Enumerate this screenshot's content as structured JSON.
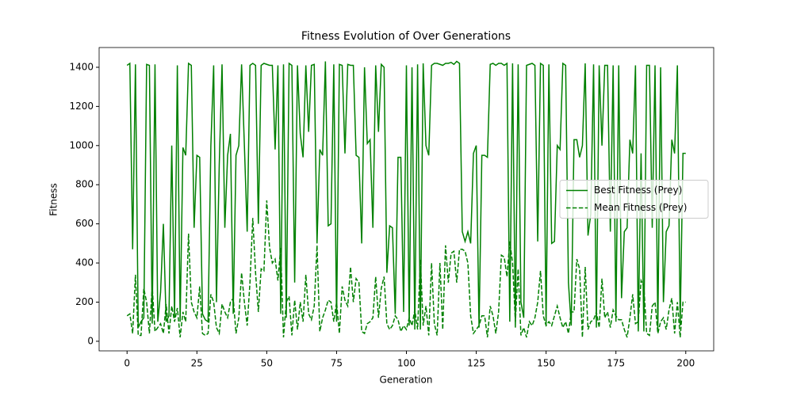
{
  "chart_data": {
    "type": "line",
    "title": "Fitness Evolution of Over Generations",
    "xlabel": "Generation",
    "ylabel": "Fitness",
    "x": [
      0,
      1,
      2,
      3,
      4,
      5,
      6,
      7,
      8,
      9,
      10,
      11,
      12,
      13,
      14,
      15,
      16,
      17,
      18,
      19,
      20,
      21,
      22,
      23,
      24,
      25,
      26,
      27,
      28,
      29,
      30,
      31,
      32,
      33,
      34,
      35,
      36,
      37,
      38,
      39,
      40,
      41,
      42,
      43,
      44,
      45,
      46,
      47,
      48,
      49,
      50,
      51,
      52,
      53,
      54,
      55,
      56,
      57,
      58,
      59,
      60,
      61,
      62,
      63,
      64,
      65,
      66,
      67,
      68,
      69,
      70,
      71,
      72,
      73,
      74,
      75,
      76,
      77,
      78,
      79,
      80,
      81,
      82,
      83,
      84,
      85,
      86,
      87,
      88,
      89,
      90,
      91,
      92,
      93,
      94,
      95,
      96,
      97,
      98,
      99,
      100,
      101,
      102,
      103,
      104,
      105,
      106,
      107,
      108,
      109,
      110,
      111,
      112,
      113,
      114,
      115,
      116,
      117,
      118,
      119,
      120,
      121,
      122,
      123,
      124,
      125,
      126,
      127,
      128,
      129,
      130,
      131,
      132,
      133,
      134,
      135,
      136,
      137,
      138,
      139,
      140,
      141,
      142,
      143,
      144,
      145,
      146,
      147,
      148,
      149,
      150,
      151,
      152,
      153,
      154,
      155,
      156,
      157,
      158,
      159,
      160,
      161,
      162,
      163,
      164,
      165,
      166,
      167,
      168,
      169,
      170,
      171,
      172,
      173,
      174,
      175,
      176,
      177,
      178,
      179,
      180,
      181,
      182,
      183,
      184,
      185,
      186,
      187,
      188,
      189,
      190,
      191,
      192,
      193,
      194,
      195,
      196,
      197,
      198,
      199,
      200
    ],
    "series": [
      {
        "name": "Best Fitness (Prey)",
        "color": "#008000",
        "linestyle": "solid",
        "values": [
          1410,
          1420,
          470,
          1415,
          70,
          100,
          120,
          1415,
          1410,
          90,
          1415,
          100,
          250,
          600,
          100,
          130,
          1000,
          120,
          1410,
          100,
          990,
          950,
          1420,
          1410,
          580,
          950,
          940,
          140,
          110,
          100,
          1000,
          1410,
          200,
          900,
          1415,
          580,
          950,
          1060,
          140,
          950,
          1000,
          1415,
          1000,
          560,
          1410,
          1420,
          1410,
          600,
          1410,
          1420,
          1415,
          1410,
          1410,
          980,
          1410,
          140,
          1415,
          120,
          1420,
          1410,
          300,
          1410,
          1060,
          940,
          1410,
          1070,
          1410,
          1415,
          500,
          980,
          950,
          1430,
          590,
          600,
          1415,
          100,
          1415,
          1410,
          960,
          1415,
          1410,
          1410,
          950,
          940,
          500,
          1400,
          1010,
          1030,
          580,
          1410,
          1070,
          1415,
          1400,
          350,
          590,
          580,
          140,
          940,
          940,
          150,
          1410,
          80,
          1400,
          60,
          1415,
          60,
          1420,
          1000,
          950,
          1410,
          1420,
          1420,
          1415,
          1410,
          1420,
          1420,
          1425,
          1415,
          1430,
          1420,
          560,
          510,
          560,
          500,
          960,
          1000,
          70,
          950,
          950,
          940,
          1415,
          1420,
          1410,
          1420,
          1420,
          1410,
          1420,
          100,
          1420,
          70,
          1415,
          200,
          120,
          1410,
          1415,
          1420,
          1410,
          510,
          1420,
          1410,
          80,
          1415,
          500,
          510,
          1000,
          980,
          1420,
          1410,
          300,
          80,
          1030,
          1030,
          940,
          1000,
          1420,
          540,
          650,
          1415,
          70,
          1410,
          1000,
          1410,
          1410,
          560,
          1410,
          100,
          1410,
          220,
          560,
          580,
          1030,
          960,
          1410,
          50,
          960,
          50,
          1410,
          1410,
          580,
          1410,
          60,
          1400,
          200,
          560,
          590,
          1030,
          960,
          1410,
          80,
          960,
          960
        ]
      },
      {
        "name": "Mean Fitness (Prey)",
        "color": "#008000",
        "linestyle": "dashed",
        "values": [
          130,
          140,
          40,
          340,
          30,
          30,
          270,
          200,
          40,
          280,
          50,
          70,
          90,
          40,
          190,
          40,
          180,
          100,
          170,
          20,
          150,
          100,
          550,
          200,
          150,
          120,
          280,
          40,
          30,
          40,
          240,
          200,
          70,
          40,
          190,
          150,
          120,
          200,
          220,
          40,
          120,
          350,
          200,
          80,
          300,
          630,
          350,
          150,
          370,
          360,
          720,
          480,
          400,
          420,
          310,
          480,
          20,
          200,
          230,
          30,
          210,
          60,
          200,
          100,
          340,
          140,
          110,
          180,
          490,
          50,
          120,
          160,
          210,
          200,
          100,
          200,
          40,
          280,
          210,
          180,
          380,
          200,
          320,
          300,
          50,
          40,
          90,
          100,
          120,
          330,
          120,
          270,
          330,
          90,
          60,
          80,
          130,
          110,
          50,
          80,
          60,
          120,
          80,
          160,
          60,
          420,
          80,
          180,
          30,
          400,
          90,
          30,
          400,
          60,
          490,
          300,
          450,
          460,
          300,
          470,
          470,
          460,
          400,
          130,
          40,
          60,
          80,
          130,
          130,
          20,
          180,
          130,
          40,
          150,
          440,
          430,
          330,
          510,
          400,
          100,
          370,
          30,
          70,
          20,
          100,
          80,
          120,
          200,
          360,
          130,
          80,
          100,
          80,
          130,
          180,
          120,
          70,
          100,
          40,
          150,
          150,
          420,
          370,
          20,
          380,
          60,
          100,
          110,
          150,
          70,
          320,
          120,
          150,
          70,
          160,
          130,
          110,
          110,
          60,
          20,
          120,
          240,
          90,
          100,
          310,
          280,
          40,
          30,
          180,
          200,
          40,
          100,
          120,
          60,
          160,
          220,
          40,
          200,
          20,
          200,
          200
        ]
      }
    ],
    "xlim": [
      -10,
      210
    ],
    "xticks": [
      0,
      25,
      50,
      75,
      100,
      125,
      150,
      175,
      200
    ],
    "ylim": [
      -49,
      1501
    ],
    "yticks": [
      0,
      200,
      400,
      600,
      800,
      1000,
      1200,
      1400
    ],
    "legend": "center right"
  }
}
